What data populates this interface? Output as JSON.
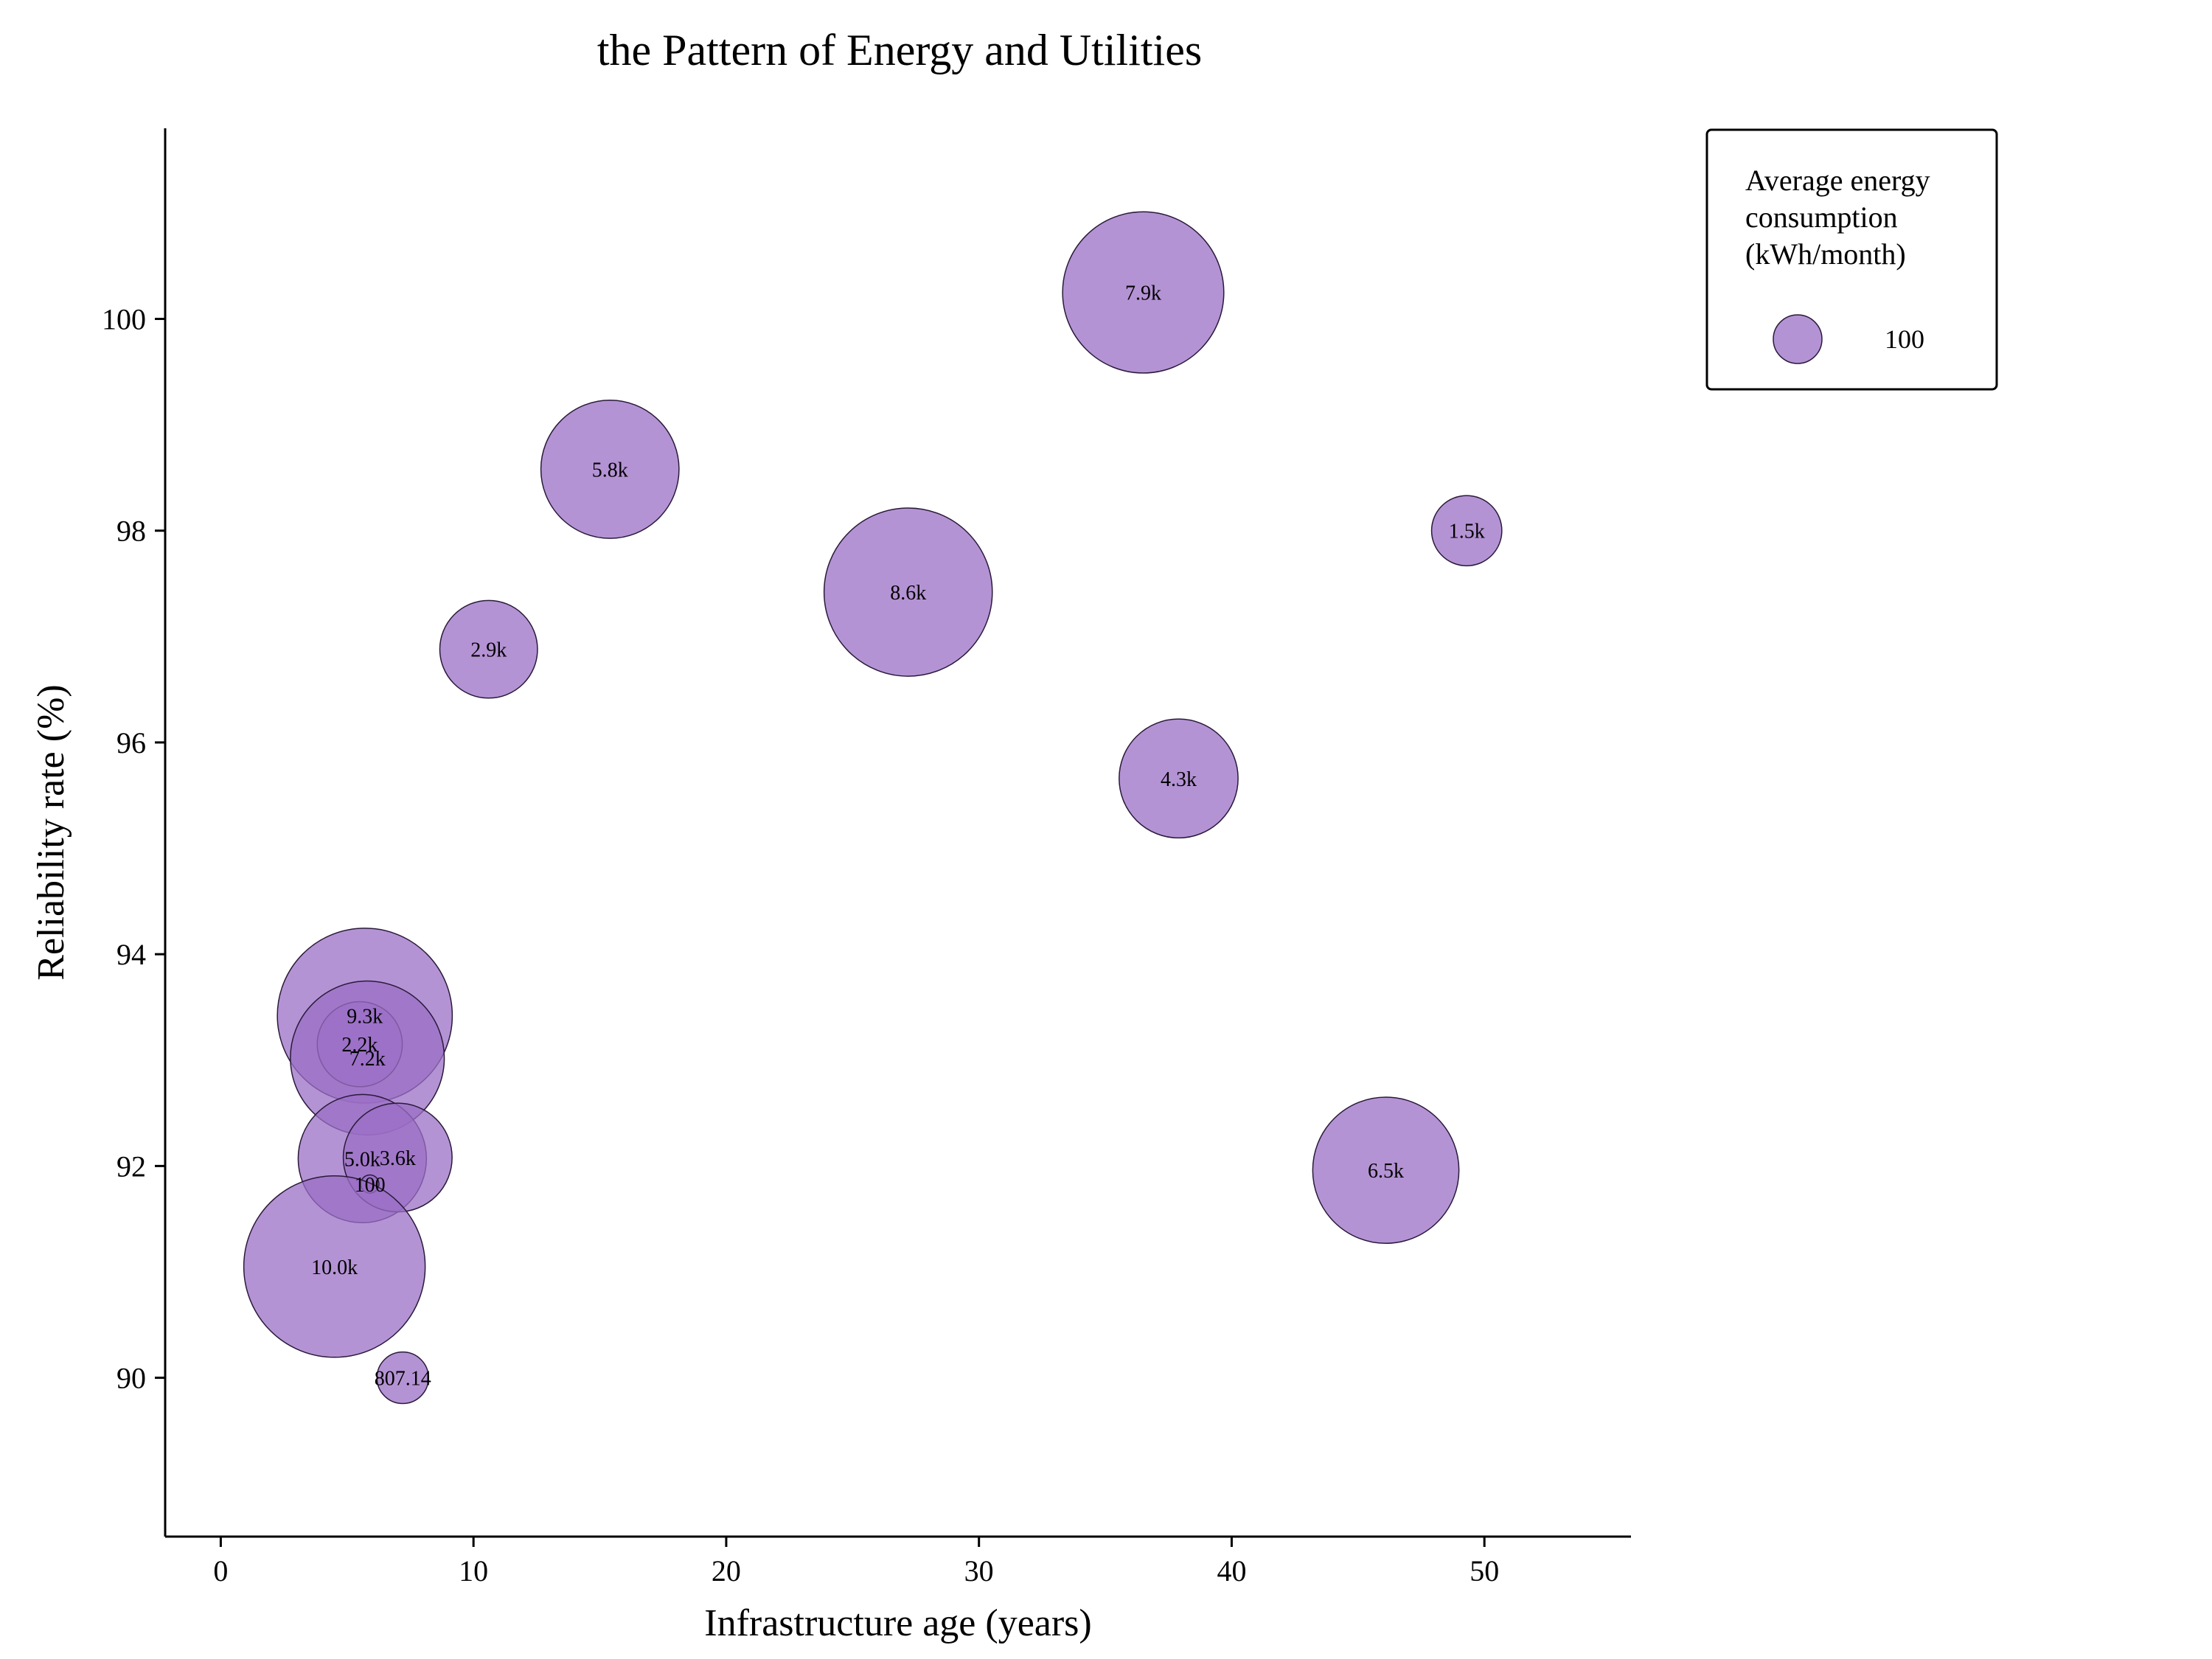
{
  "chart_data": {
    "type": "scatter",
    "title": "the Pattern of Energy and Utilities",
    "xlabel": "Infrastructure age (years)",
    "ylabel": "Reliability rate (%)",
    "xlim": [
      -2.2,
      55.8
    ],
    "ylim": [
      88.5,
      101.8
    ],
    "xticks": [
      0,
      10,
      20,
      30,
      40,
      50
    ],
    "yticks": [
      90,
      92,
      94,
      96,
      98,
      100
    ],
    "grid": false,
    "bubble_color": "#9b6fc6",
    "bubble_edge_color": "#2a1a3a",
    "legend": {
      "title_lines": [
        "Average energy",
        "consumption",
        "(kWh/month)"
      ],
      "entry_label": "100",
      "entry_size": 100,
      "placement": "outside-top-right"
    },
    "points": [
      {
        "x": 36.5,
        "y": 100.25,
        "size": 7900,
        "label": "7.9k"
      },
      {
        "x": 15.4,
        "y": 98.58,
        "size": 5800,
        "label": "5.8k"
      },
      {
        "x": 49.3,
        "y": 98.0,
        "size": 1500,
        "label": "1.5k"
      },
      {
        "x": 27.2,
        "y": 97.42,
        "size": 8600,
        "label": "8.6k"
      },
      {
        "x": 10.6,
        "y": 96.88,
        "size": 2900,
        "label": "2.9k"
      },
      {
        "x": 37.9,
        "y": 95.66,
        "size": 4300,
        "label": "4.3k"
      },
      {
        "x": 5.7,
        "y": 93.42,
        "size": 9300,
        "label": "9.3k"
      },
      {
        "x": 5.5,
        "y": 93.15,
        "size": 2200,
        "label": "2.2k"
      },
      {
        "x": 5.8,
        "y": 93.02,
        "size": 7200,
        "label": "7.2k"
      },
      {
        "x": 5.6,
        "y": 92.07,
        "size": 5000,
        "label": "5.0k"
      },
      {
        "x": 7.0,
        "y": 92.08,
        "size": 3600,
        "label": "3.6k"
      },
      {
        "x": 5.9,
        "y": 91.83,
        "size": 100,
        "label": "100"
      },
      {
        "x": 46.1,
        "y": 91.96,
        "size": 6500,
        "label": "6.5k"
      },
      {
        "x": 4.5,
        "y": 91.05,
        "size": 10000,
        "label": "10.0k"
      },
      {
        "x": 7.2,
        "y": 90.0,
        "size": 807.14,
        "label": "807.14"
      }
    ]
  }
}
